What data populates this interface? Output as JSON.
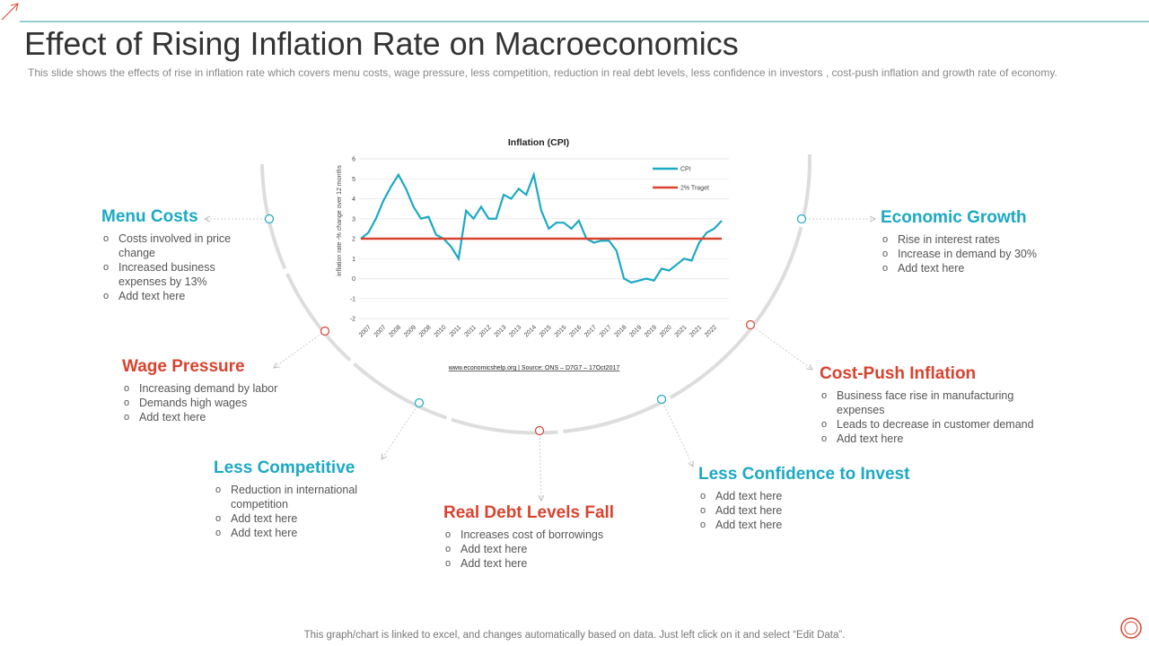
{
  "title": "Effect of Rising Inflation Rate on Macroeconomics",
  "subtitle": "This slide shows the effects of rise in inflation rate which covers  menu costs, wage pressure, less competition, reduction in real debt levels, less confidence in investors , cost-push inflation and growth rate of economy.",
  "footer": "This graph/chart is linked to excel,  and changes automatically based on data. Just left click on it and select “Edit Data”.",
  "sections": [
    {
      "heading": "Menu Costs",
      "color": "#1ba9c4",
      "items": [
        "Costs involved  in price change",
        "Increased business expenses by 13%",
        "Add text here"
      ]
    },
    {
      "heading": "Wage Pressure",
      "color": "#d8432f",
      "items": [
        "Increasing demand by labor",
        "Demands high wages",
        "Add text here"
      ]
    },
    {
      "heading": "Less Competitive",
      "color": "#1ba9c4",
      "items": [
        "Reduction in international competition",
        "Add text here",
        "Add text here"
      ]
    },
    {
      "heading": "Real Debt Levels Fall",
      "color": "#d8432f",
      "items": [
        "Increases cost of borrowings",
        "Add text here",
        "Add text here"
      ]
    },
    {
      "heading": "Less Confidence to Invest",
      "color": "#1ba9c4",
      "items": [
        "Add text here",
        "Add text here",
        "Add text here"
      ]
    },
    {
      "heading": "Cost-Push Inflation",
      "color": "#d8432f",
      "items": [
        "Business face rise in manufacturing expenses",
        "Leads to decrease in customer demand",
        "Add text here"
      ]
    },
    {
      "heading": "Economic Growth",
      "color": "#1ba9c4",
      "items": [
        "Rise in interest rates",
        "Increase in demand   by 30%",
        "Add text here"
      ]
    }
  ],
  "chart_data": {
    "type": "line",
    "title": "Inflation (CPI)",
    "y_label": "inflation rate -% change over 12 months",
    "source": "www.economicshelp.org  | Source: ONS – D7G7 – 17Oct2017",
    "categories": [
      null,
      "2007",
      null,
      "2007",
      null,
      "2008",
      null,
      "2009",
      null,
      "2008",
      null,
      "2010",
      null,
      "2011",
      null,
      "2011",
      null,
      "2012",
      null,
      "2013",
      null,
      "2013",
      null,
      "2014",
      null,
      "2015",
      null,
      "2015",
      null,
      "2016",
      null,
      "2017",
      null,
      "2017",
      null,
      "2018",
      null,
      "2019",
      null,
      "2019",
      null,
      "2020",
      null,
      "2021",
      null,
      "2021",
      null,
      "2022",
      null
    ],
    "series": [
      {
        "name": "CPI",
        "color": "#1ba9c4",
        "values": [
          2.0,
          2.3,
          3.0,
          3.9,
          4.6,
          5.2,
          4.5,
          3.6,
          3.0,
          3.1,
          2.2,
          2.0,
          1.6,
          1.0,
          3.4,
          3.0,
          3.6,
          3.0,
          3.0,
          4.2,
          4.0,
          4.5,
          4.2,
          5.2,
          3.4,
          2.5,
          2.8,
          2.8,
          2.5,
          2.9,
          2.0,
          1.8,
          1.9,
          1.9,
          1.4,
          0.0,
          -0.2,
          -0.1,
          0.0,
          -0.1,
          0.5,
          0.4,
          0.7,
          1.0,
          0.9,
          1.8,
          2.3,
          2.5,
          2.9
        ]
      },
      {
        "name": "2% Traget",
        "color": "#d8432f",
        "values": [
          2,
          2,
          2,
          2,
          2,
          2,
          2,
          2,
          2,
          2,
          2,
          2,
          2,
          2,
          2,
          2,
          2,
          2,
          2,
          2,
          2,
          2,
          2,
          2,
          2,
          2,
          2,
          2,
          2,
          2,
          2,
          2,
          2,
          2,
          2,
          2,
          2,
          2,
          2,
          2,
          2,
          2,
          2,
          2,
          2,
          2,
          2,
          2,
          2
        ]
      }
    ],
    "ylim": [
      -2,
      6
    ],
    "yticks": [
      -2,
      -1,
      0,
      1,
      2,
      3,
      4,
      5,
      6
    ],
    "grid": true
  }
}
